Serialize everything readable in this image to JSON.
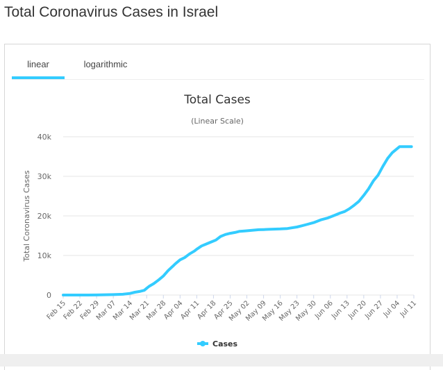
{
  "page": {
    "title": "Total Coronavirus Cases in Israel"
  },
  "tabs": [
    {
      "label": "linear",
      "active": true
    },
    {
      "label": "logarithmic",
      "active": false
    }
  ],
  "colors": {
    "series": "#33ccff",
    "title": "#333333",
    "axis_text": "#666666",
    "grid": "#e6e6e6"
  },
  "chart_data": {
    "type": "line",
    "title": "Total Cases",
    "subtitle": "(Linear Scale)",
    "xlabel": "",
    "ylabel": "Total Coronavirus Cases",
    "ylim": [
      0,
      40000
    ],
    "yticks": [
      0,
      10000,
      20000,
      30000,
      40000
    ],
    "ytick_labels": [
      "0",
      "10k",
      "20k",
      "30k",
      "40k"
    ],
    "x_tick_labels": [
      "Feb 15",
      "Feb 22",
      "Feb 29",
      "Mar 07",
      "Mar 14",
      "Mar 21",
      "Mar 28",
      "Apr 04",
      "Apr 11",
      "Apr 18",
      "Apr 25",
      "May 02",
      "May 09",
      "May 16",
      "May 23",
      "May 30",
      "Jun 06",
      "Jun 13",
      "Jun 20",
      "Jun 27",
      "Jul 04",
      "Jul 11"
    ],
    "legend": "bottom-center",
    "series": [
      {
        "name": "Cases",
        "x_day": [
          0,
          7,
          14,
          21,
          25,
          28,
          30,
          32,
          34,
          35,
          36,
          38,
          40,
          42,
          44,
          46,
          47,
          49,
          51,
          53,
          55,
          56,
          58,
          60,
          62,
          64,
          66,
          68,
          70,
          72,
          74,
          76,
          78,
          80,
          82,
          84,
          86,
          88,
          91,
          94,
          98,
          100,
          102,
          105,
          108,
          111,
          114,
          116,
          118,
          120,
          122,
          124,
          126,
          128,
          130,
          132,
          134,
          136,
          138,
          141,
          144,
          146
        ],
        "values": [
          0,
          0,
          10,
          100,
          200,
          400,
          700,
          900,
          1200,
          1700,
          2200,
          2900,
          3800,
          4800,
          6200,
          7300,
          7900,
          8900,
          9500,
          10400,
          11100,
          11600,
          12400,
          12900,
          13400,
          13900,
          14800,
          15300,
          15600,
          15800,
          16100,
          16200,
          16300,
          16400,
          16500,
          16550,
          16600,
          16650,
          16700,
          16800,
          17200,
          17500,
          17800,
          18300,
          19000,
          19500,
          20200,
          20700,
          21100,
          21800,
          22700,
          23700,
          25200,
          26800,
          28800,
          30300,
          32500,
          34500,
          36000,
          37500,
          37500,
          37500
        ]
      }
    ]
  }
}
